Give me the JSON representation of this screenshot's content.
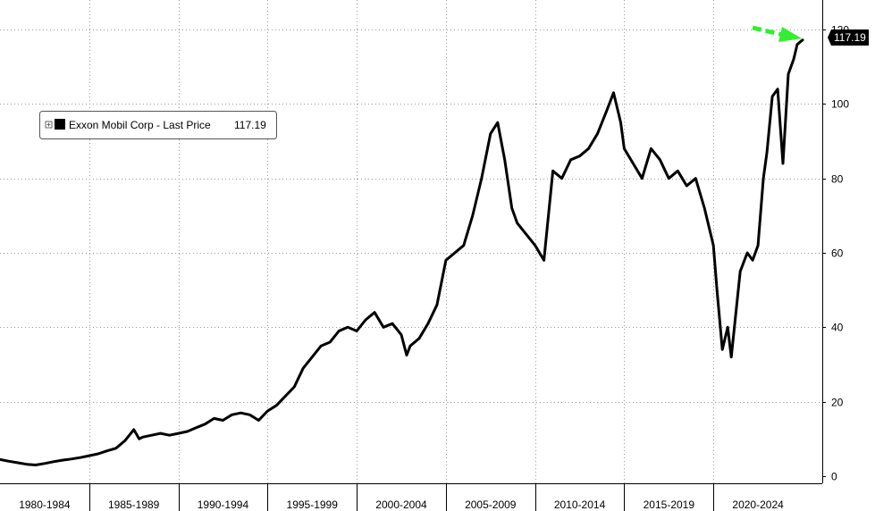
{
  "chart_data": {
    "type": "line",
    "ylim": [
      0,
      120
    ],
    "yticks": [
      0,
      20,
      40,
      60,
      80,
      100,
      120
    ],
    "x_categories": [
      "1980-1984",
      "1985-1989",
      "1990-1994",
      "1995-1999",
      "2000-2004",
      "2005-2009",
      "2010-2014",
      "2015-2019",
      "2020-2024"
    ],
    "grid": true,
    "legend": {
      "position": "top-left",
      "entries": [
        {
          "name": "Exxon Mobil Corp - Last Price",
          "value_text": "117.19",
          "color": "#000000"
        }
      ]
    },
    "last_value_label": "117.19",
    "annotation": {
      "type": "arrow",
      "color": "#33ee33",
      "points_to": "last value"
    },
    "series": [
      {
        "name": "Exxon Mobil Corp - Last Price",
        "color": "#000000",
        "x": [
          1980.0,
          1980.5,
          1981.0,
          1981.5,
          1982.0,
          1982.5,
          1983.0,
          1983.5,
          1984.0,
          1984.5,
          1985.0,
          1985.5,
          1986.0,
          1986.5,
          1987.0,
          1987.5,
          1987.8,
          1988.0,
          1988.5,
          1989.0,
          1989.5,
          1990.0,
          1990.5,
          1991.0,
          1991.5,
          1992.0,
          1992.5,
          1993.0,
          1993.5,
          1994.0,
          1994.5,
          1995.0,
          1995.5,
          1996.0,
          1996.5,
          1997.0,
          1997.5,
          1998.0,
          1998.5,
          1999.0,
          1999.5,
          2000.0,
          2000.5,
          2001.0,
          2001.5,
          2002.0,
          2002.5,
          2002.8,
          2003.0,
          2003.5,
          2004.0,
          2004.5,
          2005.0,
          2005.5,
          2006.0,
          2006.5,
          2007.0,
          2007.5,
          2007.9,
          2008.3,
          2008.7,
          2009.0,
          2009.5,
          2010.0,
          2010.5,
          2011.0,
          2011.5,
          2012.0,
          2012.5,
          2013.0,
          2013.5,
          2014.0,
          2014.4,
          2014.8,
          2015.0,
          2015.5,
          2016.0,
          2016.5,
          2017.0,
          2017.5,
          2018.0,
          2018.5,
          2019.0,
          2019.5,
          2020.0,
          2020.2,
          2020.5,
          2020.8,
          2021.0,
          2021.5,
          2021.9,
          2022.2,
          2022.5,
          2022.8,
          2023.0,
          2023.3,
          2023.6,
          2023.9,
          2024.2,
          2024.5,
          2024.7,
          2025.0
        ],
        "values": [
          4.5,
          4.0,
          3.6,
          3.2,
          3.0,
          3.4,
          3.9,
          4.3,
          4.6,
          5.0,
          5.5,
          6.0,
          6.8,
          7.5,
          9.5,
          12.5,
          10.0,
          10.5,
          11.0,
          11.5,
          11.0,
          11.5,
          12.0,
          13.0,
          14.0,
          15.5,
          15.0,
          16.5,
          17.0,
          16.5,
          15.0,
          17.5,
          19.0,
          21.5,
          24.0,
          29.0,
          32.0,
          35.0,
          36.0,
          39.0,
          40.0,
          39.0,
          42.0,
          44.0,
          40.0,
          41.0,
          38.0,
          32.5,
          35.0,
          37.0,
          41.0,
          46.0,
          58.0,
          60.0,
          62.0,
          70.0,
          80.0,
          92.0,
          95.0,
          85.0,
          72.0,
          68.0,
          65.0,
          62.0,
          58.0,
          82.0,
          80.0,
          85.0,
          86.0,
          88.0,
          92.0,
          98.0,
          103.0,
          95.0,
          88.0,
          84.0,
          80.0,
          88.0,
          85.0,
          80.0,
          82.0,
          78.0,
          80.0,
          72.0,
          62.0,
          50.0,
          34.0,
          40.0,
          32.0,
          55.0,
          60.0,
          58.0,
          62.0,
          80.0,
          87.0,
          102.0,
          104.0,
          84.0,
          108.0,
          112.0,
          116.0,
          117.19
        ]
      }
    ]
  }
}
